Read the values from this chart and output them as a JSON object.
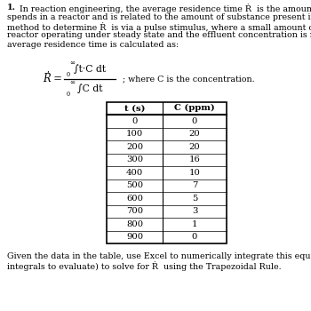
{
  "title_number": "1.",
  "para1_lines": [
    "In reaction engineering, the average residence time Ṙ  is the amount of time an element of fluid",
    "spends in a reactor and is related to the amount of substance present in the system.  The easiest",
    "method to determine Ṙ  is via a pulse stimulus, where a small amount of a tracer is put into a",
    "reactor operating under steady state and the effluent concentration is measured over time.  The",
    "average residence time is calculated as:"
  ],
  "formula_note": "; where C is the concentration.",
  "t_values": [
    0,
    100,
    200,
    300,
    400,
    500,
    600,
    700,
    800,
    900
  ],
  "C_values": [
    0,
    20,
    20,
    16,
    10,
    7,
    5,
    3,
    1,
    0
  ],
  "col1_header": "t (s)",
  "col2_header": "C (ppm)",
  "para2_lines": [
    "Given the data in the table, use Excel to numerically integrate this equation (note there are two",
    "integrals to evaluate) to solve for Ṙ  using the Trapezoidal Rule."
  ],
  "bg_color": "#ffffff",
  "text_color": "#000000",
  "font_size": 6.8,
  "table_font_size": 7.2
}
